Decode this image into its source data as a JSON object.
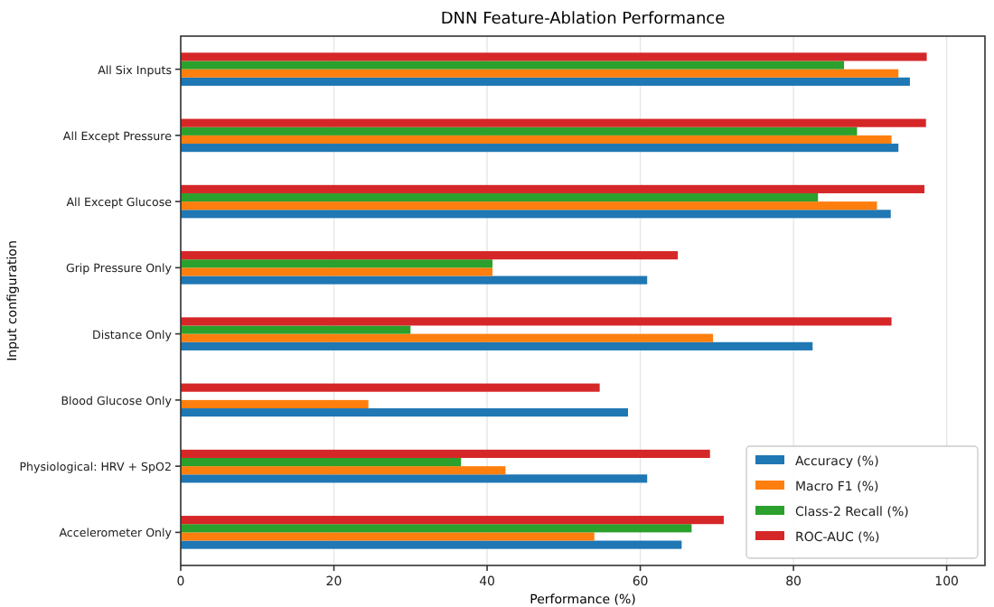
{
  "chart_data": {
    "type": "bar",
    "orientation": "horizontal",
    "title": "DNN Feature-Ablation Performance",
    "xlabel": "Performance (%)",
    "ylabel": "Input configuration",
    "categories": [
      "All Six Inputs",
      "All Except Pressure",
      "All Except Glucose",
      "Grip Pressure Only",
      "Distance Only",
      "Blood Glucose Only",
      "Physiological: HRV + SpO2",
      "Accelerometer Only"
    ],
    "series": [
      {
        "name": "Accuracy (%)",
        "color": "#1f77b4",
        "values": [
          95.2,
          93.7,
          92.7,
          60.9,
          82.5,
          58.4,
          60.9,
          65.4
        ]
      },
      {
        "name": "Macro F1 (%)",
        "color": "#ff7f0e",
        "values": [
          93.7,
          92.8,
          90.9,
          40.7,
          69.5,
          24.5,
          42.4,
          54.0
        ]
      },
      {
        "name": "Class-2 Recall (%)",
        "color": "#2ca02c",
        "values": [
          86.6,
          88.3,
          83.2,
          40.7,
          30.0,
          0,
          36.6,
          66.7
        ]
      },
      {
        "name": "ROC-AUC (%)",
        "color": "#d62728",
        "values": [
          97.4,
          97.3,
          97.1,
          64.9,
          92.8,
          54.7,
          69.1,
          70.9
        ]
      }
    ],
    "xlim": [
      0,
      105
    ],
    "xticks": [
      0,
      20,
      40,
      60,
      80,
      100
    ],
    "grid": "x",
    "legend": "bottom right"
  }
}
